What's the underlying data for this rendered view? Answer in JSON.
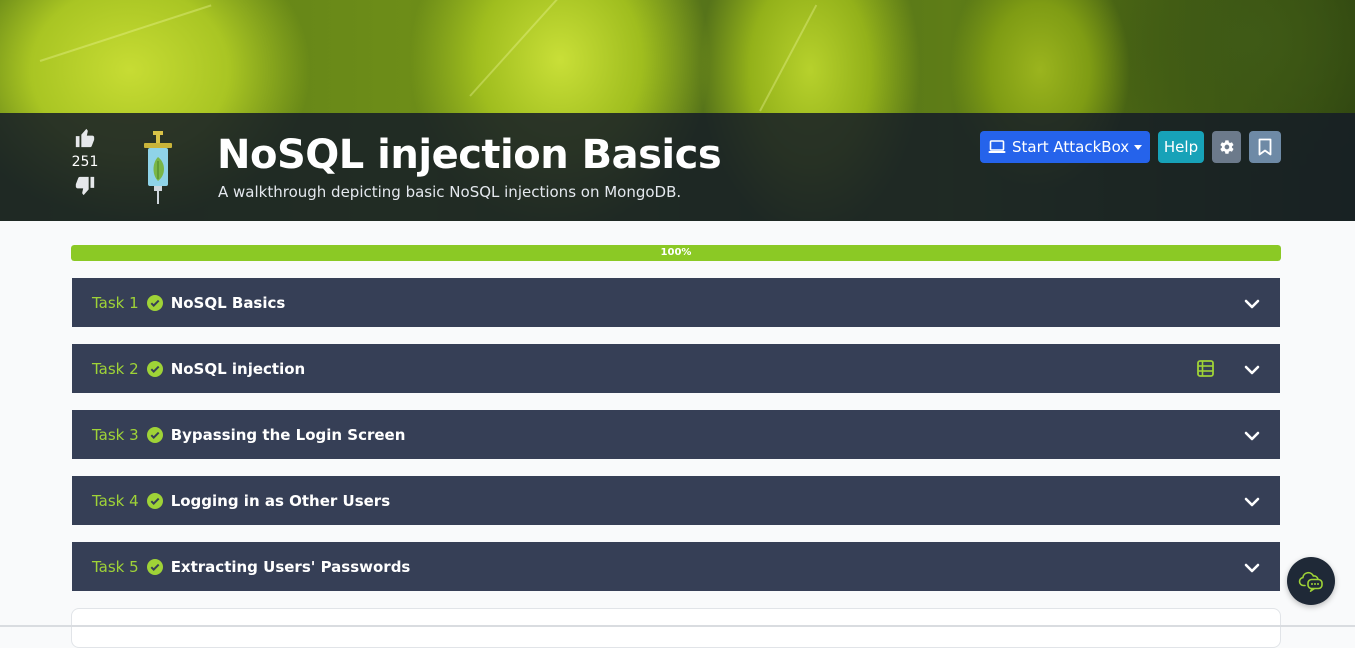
{
  "room": {
    "title": "NoSQL injection Basics",
    "subtitle": "A walkthrough depicting basic NoSQL injections on MongoDB.",
    "votes": "251",
    "icon": "syringe-icon"
  },
  "toolbar": {
    "attackbox_label": "Start AttackBox",
    "help_label": "Help",
    "settings_icon": "gear-icon",
    "bookmark_icon": "bookmark-icon"
  },
  "progress": {
    "label": "100%",
    "value": 1.0
  },
  "tasks": [
    {
      "number": "Task 1",
      "title": "NoSQL Basics",
      "completed": true
    },
    {
      "number": "Task 2",
      "title": "NoSQL injection",
      "completed": true,
      "has_sheet_icon": true
    },
    {
      "number": "Task 3",
      "title": "Bypassing the Login Screen",
      "completed": true
    },
    {
      "number": "Task 4",
      "title": "Logging in as Other Users",
      "completed": true
    },
    {
      "number": "Task 5",
      "title": "Extracting Users' Passwords",
      "completed": true
    }
  ],
  "colors": {
    "accent_green": "#8bc925",
    "task_bg": "#363f56",
    "attackbox_blue": "#2563eb",
    "help_teal": "#17a2b8"
  }
}
